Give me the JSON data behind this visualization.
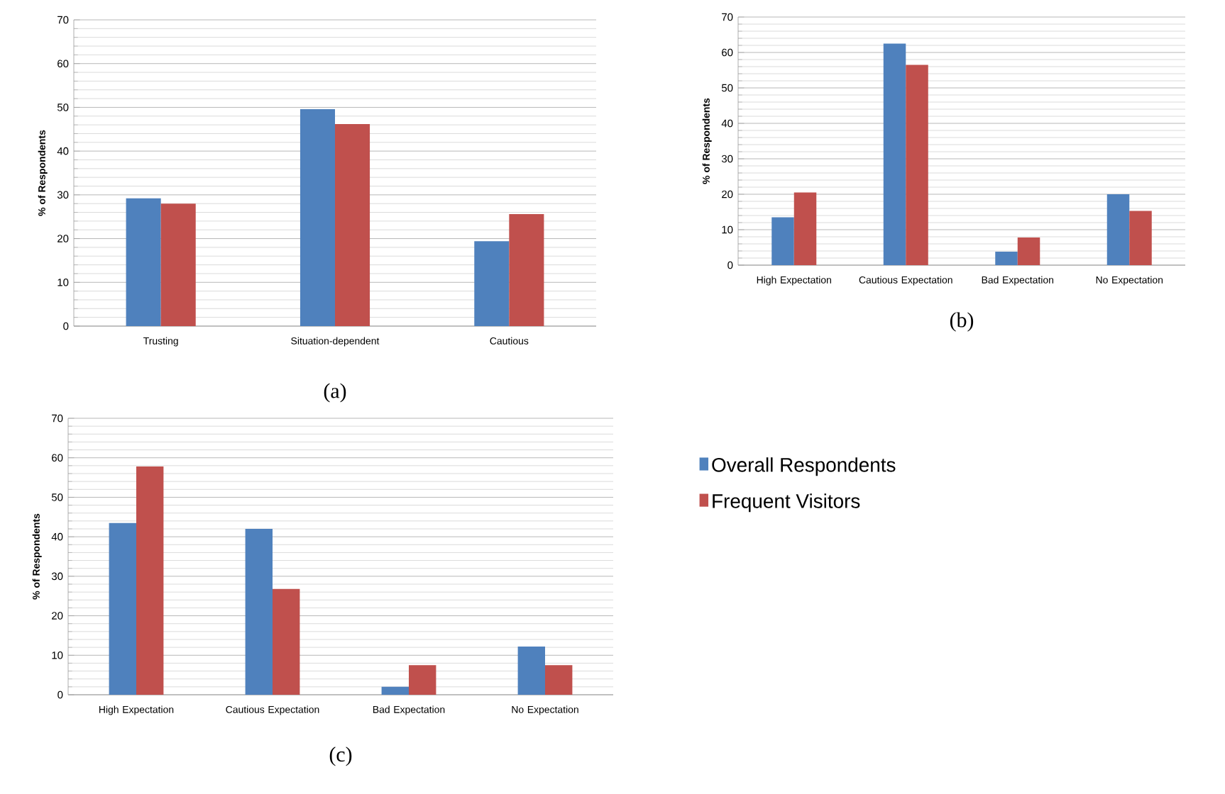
{
  "chart_data": [
    {
      "type": "bar",
      "categories": [
        "Trusting",
        "Situation-dependent",
        "Cautious"
      ],
      "ylabel": "% of Respondents",
      "ylim": [
        0,
        70
      ],
      "yticks": [
        0,
        10,
        20,
        30,
        40,
        50,
        60,
        70
      ],
      "grid": "y",
      "annotations": [
        "(a)"
      ],
      "series": [
        {
          "color": "#4f81bd",
          "values": [
            29.2,
            49.6,
            19.4
          ]
        },
        {
          "color": "#c0504d",
          "values": [
            28,
            46.2,
            25.6
          ]
        }
      ]
    },
    {
      "type": "bar",
      "categories": [
        "High Expectation",
        "Cautious Expectation",
        "Bad Expectation",
        "No Expectation"
      ],
      "ylabel": "% of Respondents",
      "ylim": [
        0,
        70
      ],
      "yticks": [
        0,
        10,
        20,
        30,
        40,
        50,
        60,
        70
      ],
      "grid": "y",
      "annotations": [
        "(b)"
      ],
      "series": [
        {
          "color": "#4f81bd",
          "values": [
            13.5,
            62.5,
            3.8,
            20
          ]
        },
        {
          "color": "#c0504d",
          "values": [
            20.5,
            56.5,
            7.8,
            15.3
          ]
        }
      ]
    },
    {
      "type": "bar",
      "categories": [
        "High Expectation",
        "Cautious Expectation",
        "Bad Expectation",
        "No Expectation"
      ],
      "ylabel": "% of Respondents",
      "ylim": [
        0,
        70
      ],
      "yticks": [
        0,
        10,
        20,
        30,
        40,
        50,
        60,
        70
      ],
      "grid": "y",
      "legend": "right",
      "annotations": [
        "(c)"
      ],
      "series": [
        {
          "name": "Overall Respondents",
          "color": "#4f81bd",
          "values": [
            43.5,
            42,
            2,
            12.2
          ]
        },
        {
          "name": "Frequent Visitors",
          "color": "#c0504d",
          "values": [
            57.8,
            26.8,
            7.5,
            7.5
          ]
        }
      ]
    }
  ]
}
